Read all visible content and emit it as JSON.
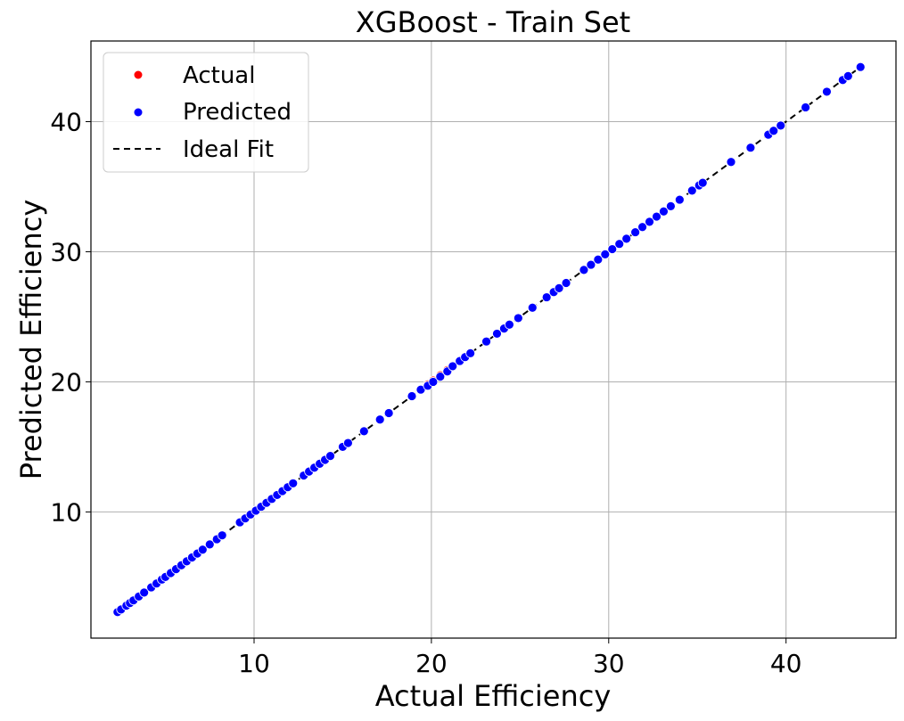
{
  "chart_data": {
    "type": "scatter",
    "title": "XGBoost - Train Set",
    "xlabel": "Actual Efficiency",
    "ylabel": "Predicted Efficiency",
    "xlim": [
      0.8,
      46.2
    ],
    "ylim": [
      0.3,
      46.2
    ],
    "xticks": [
      10,
      20,
      30,
      40
    ],
    "yticks": [
      10,
      20,
      30,
      40
    ],
    "grid": true,
    "legend_position": "top-left",
    "legend": [
      {
        "label": "Actual",
        "kind": "marker",
        "color": "#ff0000"
      },
      {
        "label": "Predicted",
        "kind": "marker",
        "color": "#0000ff"
      },
      {
        "label": "Ideal Fit",
        "kind": "dashed-line",
        "color": "#000000"
      }
    ],
    "ideal_fit": {
      "x": [
        2.3,
        44.2
      ],
      "y": [
        2.3,
        44.2
      ]
    },
    "series": [
      {
        "name": "Actual",
        "color": "#ff0000",
        "x": [
          2.3,
          2.5,
          2.8,
          3.0,
          3.2,
          3.5,
          3.8,
          4.2,
          4.5,
          4.8,
          5.0,
          5.3,
          5.6,
          5.9,
          6.2,
          6.5,
          6.8,
          7.1,
          7.5,
          7.9,
          8.2,
          9.2,
          9.5,
          9.8,
          10.1,
          10.4,
          10.7,
          11.0,
          11.3,
          11.6,
          11.9,
          12.2,
          12.8,
          13.1,
          13.4,
          13.7,
          14.0,
          14.3,
          15.0,
          15.3,
          16.2,
          17.1,
          17.6,
          18.9,
          19.4,
          19.8,
          20.1,
          20.5,
          20.9,
          21.2,
          21.6,
          21.9,
          22.2,
          23.1,
          23.7,
          24.1,
          24.4,
          24.9,
          25.7,
          26.5,
          26.9,
          27.2,
          27.6,
          28.6,
          29.0,
          29.4,
          29.8,
          30.2,
          30.6,
          31.0,
          31.5,
          31.9,
          32.3,
          32.7,
          33.1,
          33.5,
          34.0,
          34.7,
          35.1,
          35.3,
          36.9,
          38.0,
          39.0,
          39.3,
          39.7,
          41.1,
          42.3,
          43.2,
          43.5,
          44.2
        ],
        "y": [
          2.3,
          2.5,
          2.8,
          3.0,
          3.2,
          3.5,
          3.8,
          4.2,
          4.5,
          4.8,
          5.0,
          5.3,
          5.6,
          5.9,
          6.2,
          6.5,
          6.8,
          7.1,
          7.5,
          7.9,
          8.2,
          9.2,
          9.5,
          9.8,
          10.1,
          10.4,
          10.7,
          11.0,
          11.3,
          11.6,
          11.9,
          12.2,
          12.8,
          13.1,
          13.4,
          13.7,
          14.0,
          14.3,
          15.0,
          15.3,
          16.2,
          17.1,
          17.6,
          18.9,
          19.4,
          19.8,
          20.1,
          20.5,
          20.9,
          21.2,
          21.6,
          21.9,
          22.2,
          23.1,
          23.7,
          24.1,
          24.4,
          24.9,
          25.7,
          26.5,
          26.9,
          27.2,
          27.6,
          28.6,
          29.0,
          29.4,
          29.8,
          30.2,
          30.6,
          31.0,
          31.5,
          31.9,
          32.3,
          32.7,
          33.1,
          33.5,
          34.0,
          34.7,
          35.1,
          35.3,
          36.9,
          38.0,
          39.0,
          39.3,
          39.7,
          41.1,
          42.3,
          43.2,
          43.5,
          44.2
        ]
      },
      {
        "name": "Predicted",
        "color": "#0000ff",
        "x": [
          2.3,
          2.5,
          2.8,
          3.0,
          3.2,
          3.5,
          3.8,
          4.2,
          4.5,
          4.8,
          5.0,
          5.3,
          5.6,
          5.9,
          6.2,
          6.5,
          6.8,
          7.1,
          7.5,
          7.9,
          8.2,
          9.2,
          9.5,
          9.8,
          10.1,
          10.4,
          10.7,
          11.0,
          11.3,
          11.6,
          11.9,
          12.2,
          12.8,
          13.1,
          13.4,
          13.7,
          14.0,
          14.3,
          15.0,
          15.3,
          16.2,
          17.1,
          17.6,
          18.9,
          19.4,
          19.8,
          20.1,
          20.5,
          20.9,
          21.2,
          21.6,
          21.9,
          22.2,
          23.1,
          23.7,
          24.1,
          24.4,
          24.9,
          25.7,
          26.5,
          26.9,
          27.2,
          27.6,
          28.6,
          29.0,
          29.4,
          29.8,
          30.2,
          30.6,
          31.0,
          31.5,
          31.9,
          32.3,
          32.7,
          33.1,
          33.5,
          34.0,
          34.7,
          35.1,
          35.3,
          36.9,
          38.0,
          39.0,
          39.3,
          39.7,
          41.1,
          42.3,
          43.2,
          43.5,
          44.2
        ],
        "y": [
          2.3,
          2.5,
          2.8,
          3.0,
          3.2,
          3.5,
          3.8,
          4.2,
          4.5,
          4.8,
          5.0,
          5.3,
          5.6,
          5.9,
          6.2,
          6.5,
          6.8,
          7.1,
          7.5,
          7.9,
          8.2,
          9.2,
          9.5,
          9.8,
          10.1,
          10.4,
          10.7,
          11.0,
          11.3,
          11.6,
          11.9,
          12.2,
          12.8,
          13.1,
          13.4,
          13.7,
          14.0,
          14.3,
          15.0,
          15.3,
          16.2,
          17.1,
          17.6,
          18.9,
          19.4,
          19.7,
          20.0,
          20.4,
          20.8,
          21.2,
          21.6,
          21.9,
          22.2,
          23.1,
          23.7,
          24.1,
          24.4,
          24.9,
          25.7,
          26.5,
          26.9,
          27.2,
          27.6,
          28.6,
          29.0,
          29.4,
          29.8,
          30.2,
          30.6,
          31.0,
          31.5,
          31.9,
          32.3,
          32.7,
          33.1,
          33.5,
          34.0,
          34.7,
          35.1,
          35.3,
          36.9,
          38.0,
          39.0,
          39.3,
          39.7,
          41.1,
          42.3,
          43.2,
          43.5,
          44.2
        ]
      }
    ]
  }
}
